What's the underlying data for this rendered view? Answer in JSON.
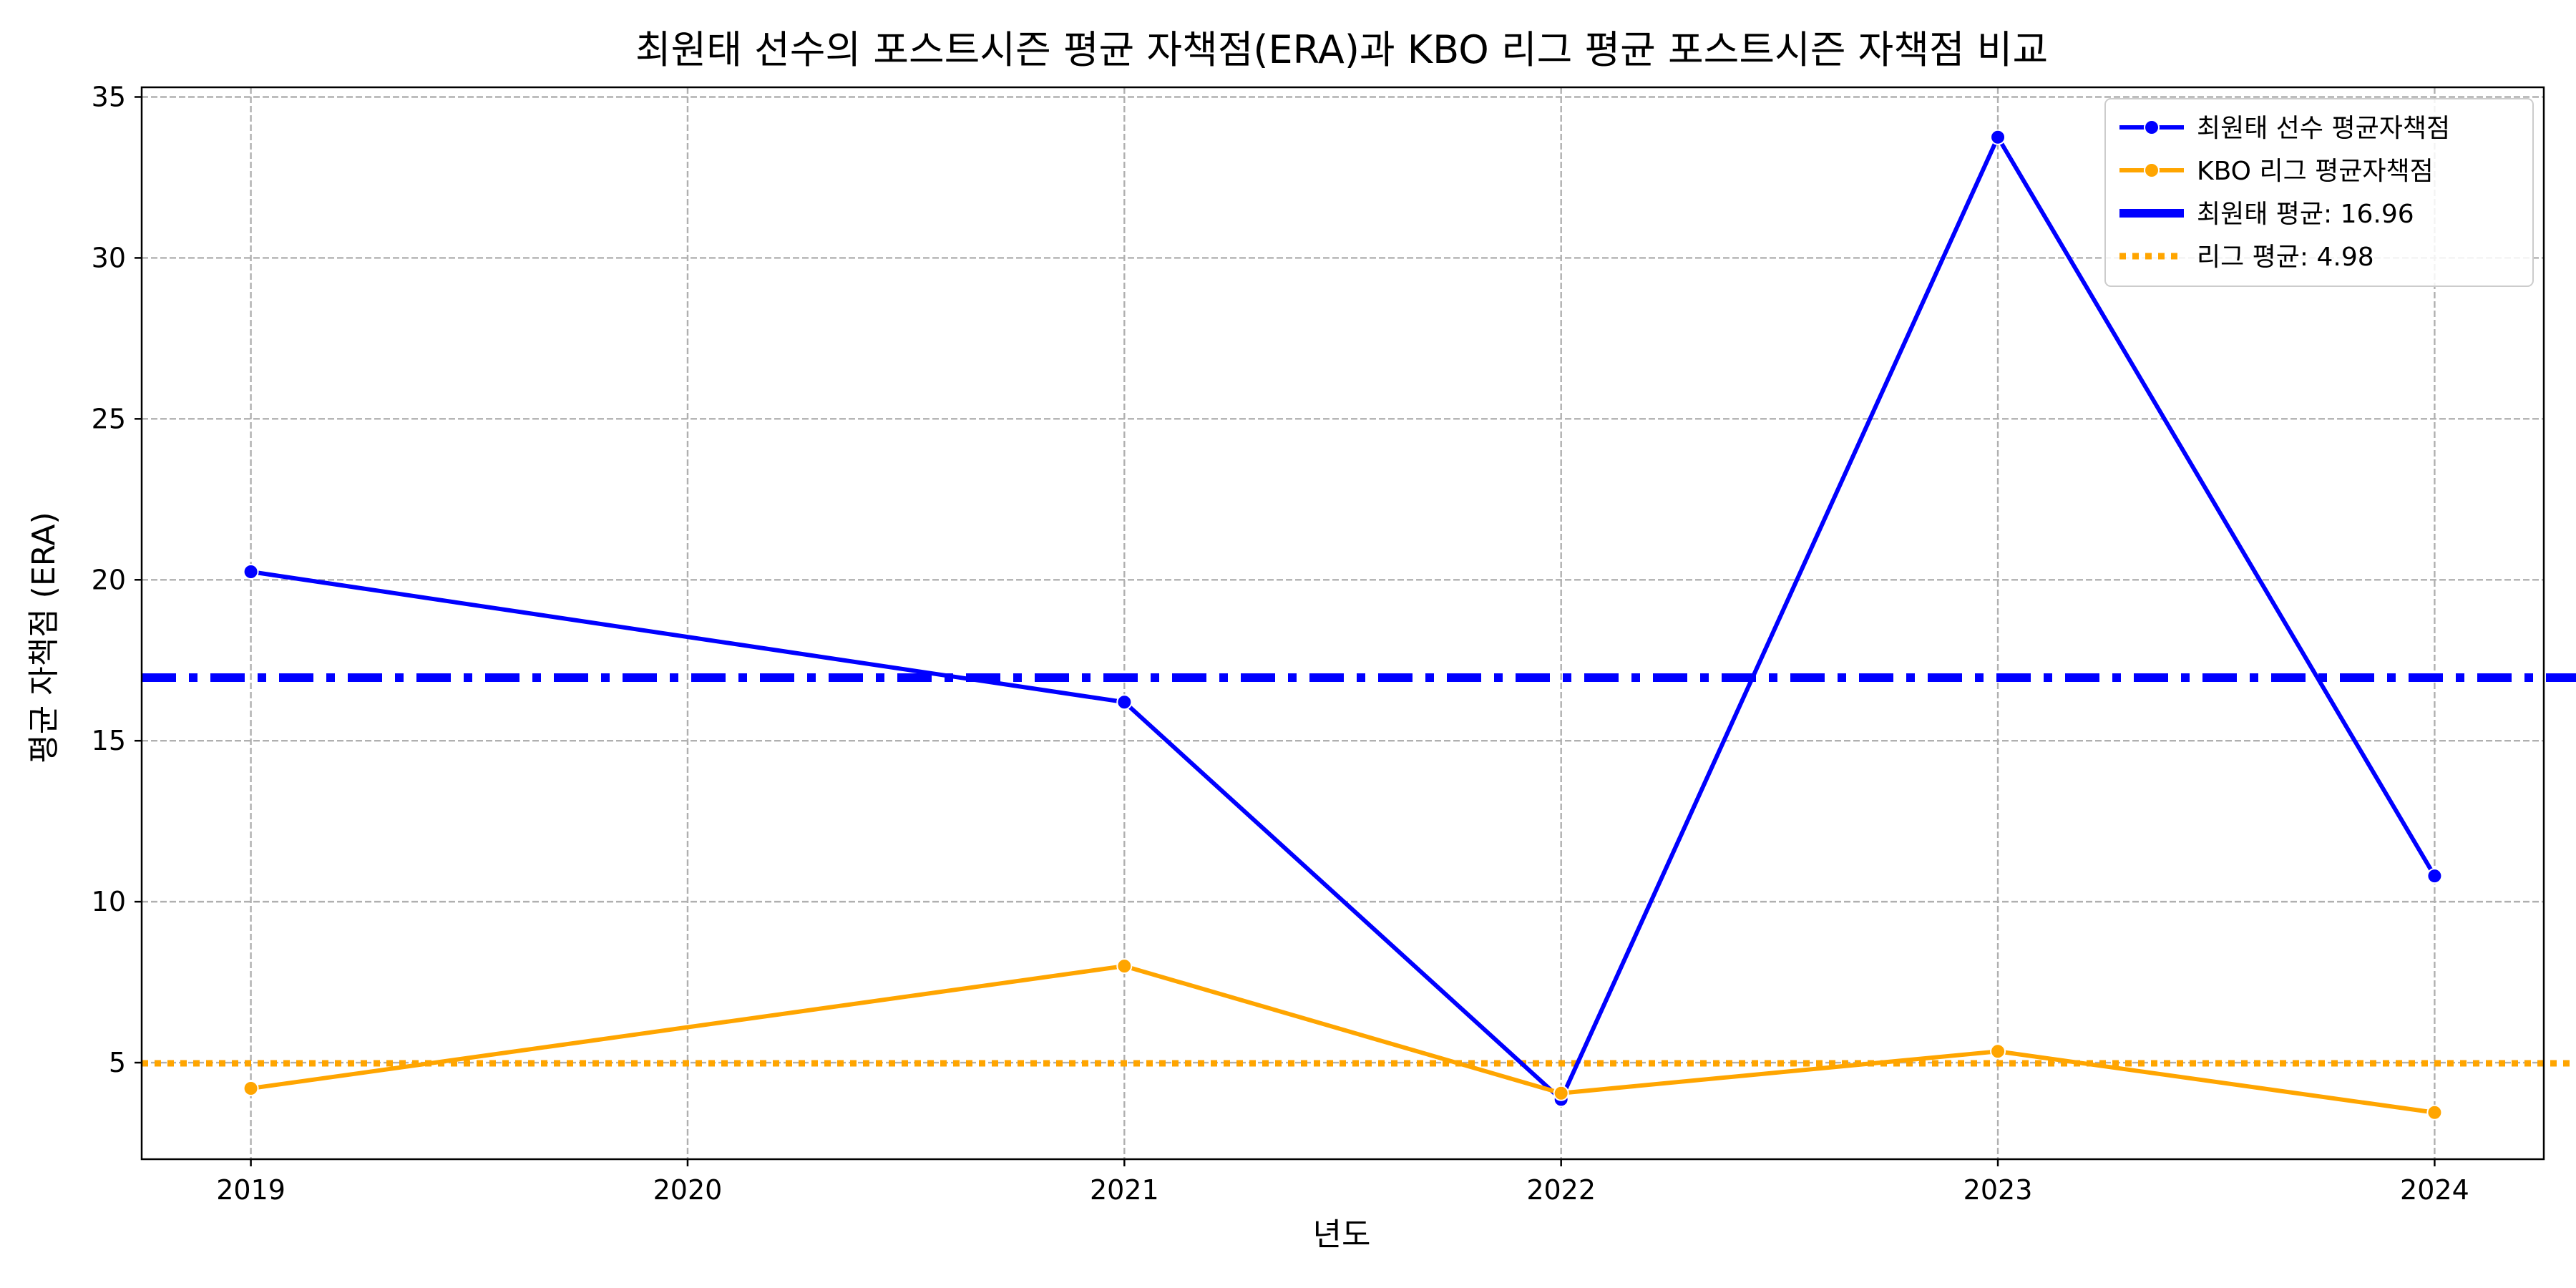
{
  "chart_data": {
    "type": "line",
    "title": "최원태 선수의 포스트시즌 평균 자책점(ERA)과 KBO 리그 평균 포스트시즌 자책점 비교",
    "xlabel": "년도",
    "ylabel": "평균 자책점 (ERA)",
    "x": [
      2019,
      2020,
      2021,
      2022,
      2023,
      2024
    ],
    "x_tick_labels": [
      "2019",
      "2020",
      "2021",
      "2022",
      "2023",
      "2024"
    ],
    "xlim": [
      2018.75,
      2024.25
    ],
    "ylim": [
      2.0,
      35.3
    ],
    "y_ticks": [
      5,
      10,
      15,
      20,
      25,
      30,
      35
    ],
    "y_tick_labels": [
      "5",
      "10",
      "15",
      "20",
      "25",
      "30",
      "35"
    ],
    "grid": true,
    "legend_position": "top-right",
    "series": [
      {
        "name": "최원태 선수 평균자책점",
        "color": "#0000ff",
        "points": [
          {
            "x": 2019,
            "y": 20.25
          },
          {
            "x": 2021,
            "y": 16.2
          },
          {
            "x": 2022,
            "y": 3.86
          },
          {
            "x": 2023,
            "y": 33.75
          },
          {
            "x": 2024,
            "y": 10.8
          }
        ]
      },
      {
        "name": "KBO 리그 평균자책점",
        "color": "#ffa500",
        "points": [
          {
            "x": 2019,
            "y": 4.2
          },
          {
            "x": 2021,
            "y": 8.0
          },
          {
            "x": 2022,
            "y": 4.05
          },
          {
            "x": 2023,
            "y": 5.35
          },
          {
            "x": 2024,
            "y": 3.45
          }
        ]
      }
    ],
    "reference_lines": [
      {
        "name": "최원태 평균: 16.96",
        "y": 16.96,
        "color": "#0000ff",
        "style": "dash-dot"
      },
      {
        "name": "리그 평균: 4.98",
        "y": 4.98,
        "color": "#ffa500",
        "style": "dotted"
      }
    ],
    "legend": [
      {
        "label": "최원태 선수 평균자책점",
        "color": "#0000ff",
        "style": "line-marker"
      },
      {
        "label": "KBO 리그 평균자책점",
        "color": "#ffa500",
        "style": "line-marker"
      },
      {
        "label": "최원태 평균: 16.96",
        "color": "#0000ff",
        "style": "dash-dot"
      },
      {
        "label": "리그 평균: 4.98",
        "color": "#ffa500",
        "style": "dotted"
      }
    ]
  }
}
